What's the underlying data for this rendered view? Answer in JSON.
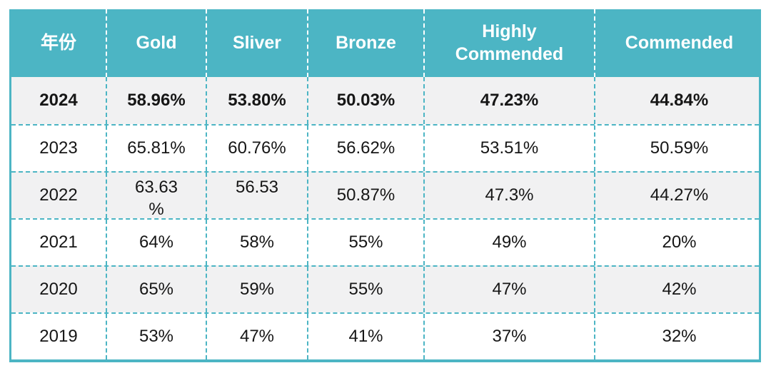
{
  "colors": {
    "accent_teal": "#4cb5c4",
    "shaded_row_bg": "#f1f1f2",
    "header_text": "#ffffff",
    "body_text": "#161616"
  },
  "table": {
    "columns": [
      "年份",
      "Gold",
      "Sliver",
      "Bronze",
      "Highly\nCommended",
      "Commended"
    ],
    "rows": [
      {
        "year": "2024",
        "bold": true,
        "shaded": true,
        "values": [
          "58.96%",
          "53.80%",
          "50.03%",
          "47.23%",
          "44.84%"
        ]
      },
      {
        "year": "2023",
        "bold": false,
        "shaded": false,
        "values": [
          "65.81%",
          "60.76%",
          "56.62%",
          "53.51%",
          "50.59%"
        ]
      },
      {
        "year": "2022",
        "bold": false,
        "shaded": true,
        "values": [
          {
            "text": "63.63\n%",
            "wrap": true
          },
          {
            "text": "56.53",
            "wrap": true
          },
          "50.87%",
          "47.3%",
          "44.27%"
        ]
      },
      {
        "year": "2021",
        "bold": false,
        "shaded": false,
        "values": [
          "64%",
          "58%",
          "55%",
          "49%",
          "20%"
        ]
      },
      {
        "year": "2020",
        "bold": false,
        "shaded": true,
        "values": [
          "65%",
          "59%",
          "55%",
          "47%",
          "42%"
        ]
      },
      {
        "year": "2019",
        "bold": false,
        "shaded": false,
        "values": [
          "53%",
          "47%",
          "41%",
          "37%",
          "32%"
        ]
      }
    ]
  }
}
